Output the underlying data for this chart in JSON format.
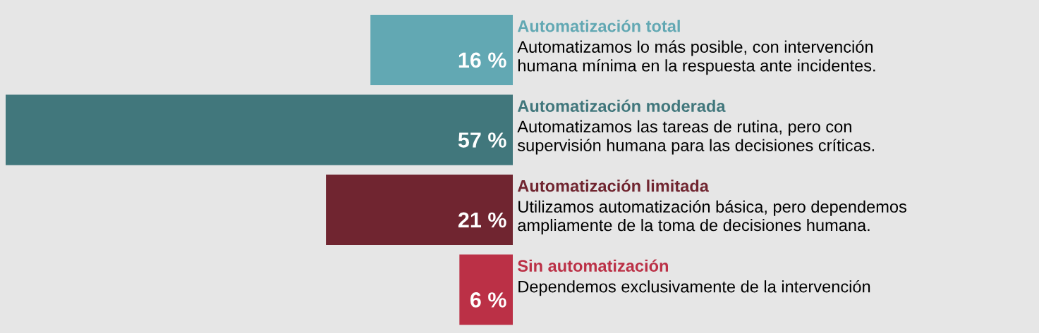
{
  "chart_data": {
    "type": "bar",
    "orientation": "horizontal",
    "categories": [
      "Automatización total",
      "Automatización moderada",
      "Automatización limitada",
      "Sin automatización"
    ],
    "values": [
      16,
      57,
      21,
      6
    ],
    "value_labels": [
      "16 %",
      "57 %",
      "21 %",
      "6 %"
    ],
    "colors": [
      "#62a8b3",
      "#41777c",
      "#702530",
      "#bb3046"
    ],
    "annotations": [
      "Automatizamos lo más posible, con intervención\nhumana mínima en la respuesta ante incidentes.",
      "Automatizamos las tareas de rutina, pero con\nsupervisión humana para las decisiones críticas.",
      "Utilizamos automatización básica, pero dependemos\nampliamente de la toma de decisiones humana.",
      "Dependemos exclusivamente de la intervención"
    ]
  }
}
